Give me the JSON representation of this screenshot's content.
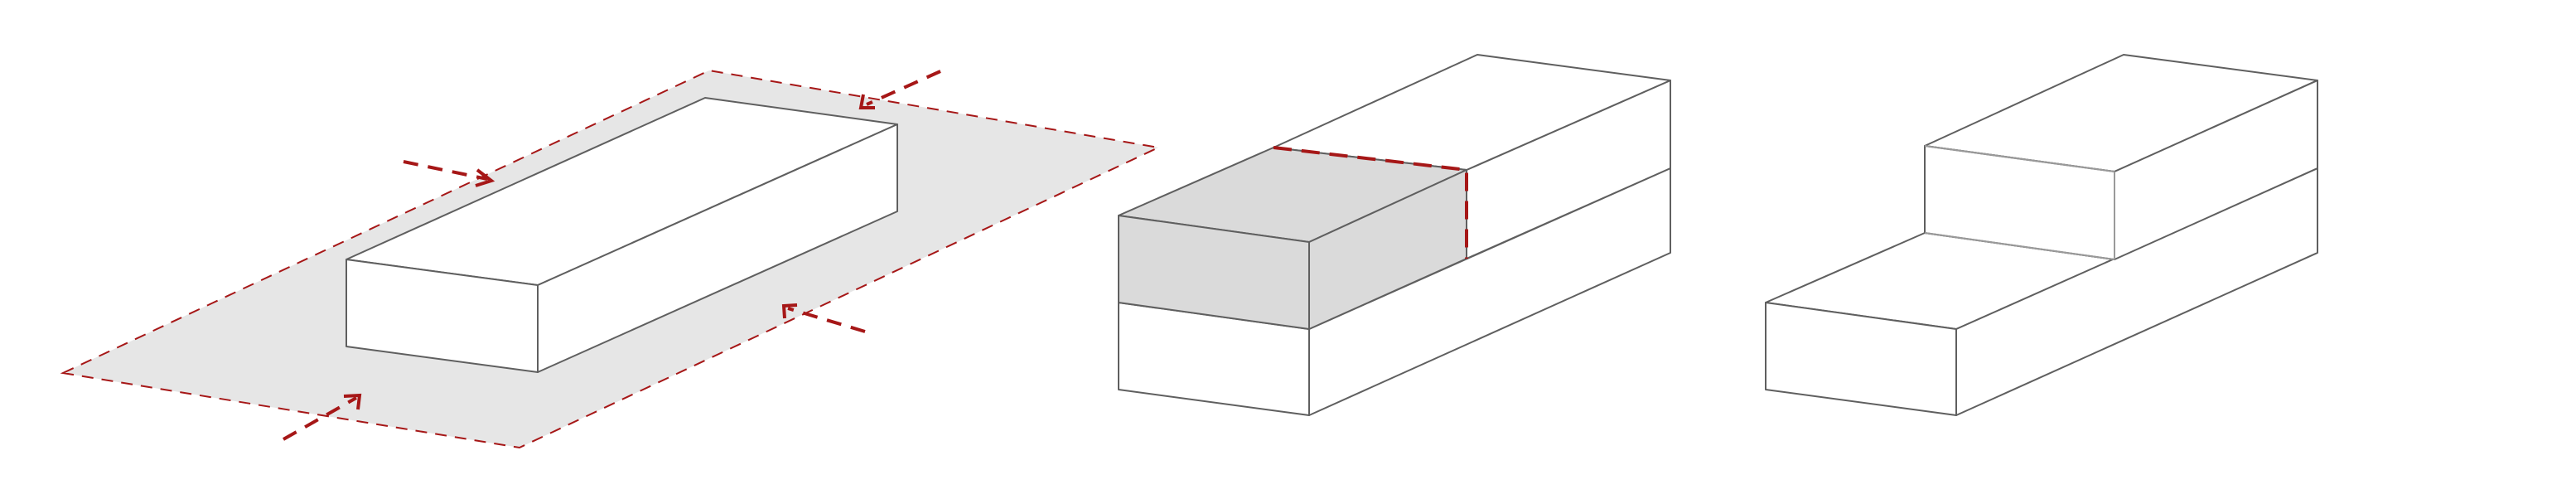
{
  "diagram": {
    "panels": [
      {
        "name": "site-massing"
      },
      {
        "name": "stacked-volume-cut"
      },
      {
        "name": "stepped-volume"
      }
    ],
    "colors": {
      "accent_red": "#a61717",
      "site_fill": "#e6e6e6",
      "cut_fill": "#dadada",
      "line": "#5f5f5f"
    },
    "icons": [
      "arrow-icon"
    ]
  }
}
